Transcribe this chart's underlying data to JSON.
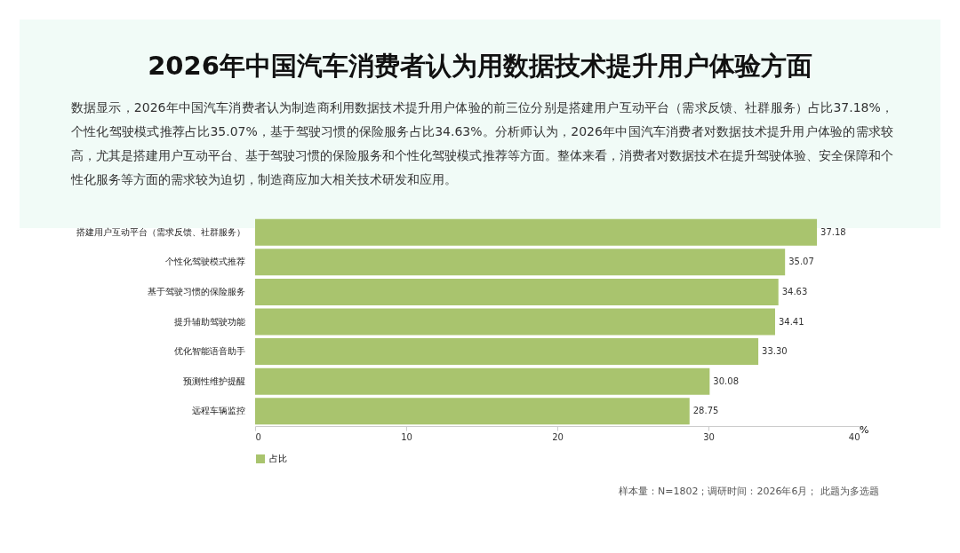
{
  "chart_data": {
    "type": "bar",
    "orientation": "horizontal",
    "title": "2026年中国汽车消费者认为用数据技术提升用户体验方面",
    "subtitle": "数据显示，2026年中国汽车消费者认为制造商利用数据技术提升用户体验的前三位分别是搭建用户互动平台（需求反馈、社群服务）占比37.18%，个性化驾驶模式推荐占比35.07%，基于驾驶习惯的保险服务占比34.63%。分析师认为，2026年中国汽车消费者对数据技术提升用户体验的需求较高，尤其是搭建用户互动平台、基于驾驶习惯的保险服务和个性化驾驶模式推荐等方面。整体来看，消费者对数据技术在提升驾驶体验、安全保障和个性化服务等方面的需求较为迫切，制造商应加大相关技术研发和应用。",
    "categories": [
      "搭建用户互动平台（需求反馈、社群服务）",
      "个性化驾驶模式推荐",
      "基于驾驶习惯的保险服务",
      "提升辅助驾驶功能",
      "优化智能语音助手",
      "预测性维护提醒",
      "远程车辆监控"
    ],
    "series": [
      {
        "name": "占比",
        "color": "#a9c46e",
        "values": [
          37.18,
          35.07,
          34.63,
          34.41,
          33.3,
          30.08,
          28.75
        ],
        "value_labels": [
          "37.18",
          "35.07",
          "34.63",
          "34.41",
          "33.30",
          "30.08",
          "28.75"
        ]
      }
    ],
    "xlim": [
      0,
      40
    ],
    "xticks": [
      0,
      10,
      20,
      30,
      40
    ],
    "xlabel": "%",
    "legend": "bottom",
    "annotations": [
      "样本量：N=1802；调研时间：2026年6月； 此题为多选题"
    ]
  }
}
